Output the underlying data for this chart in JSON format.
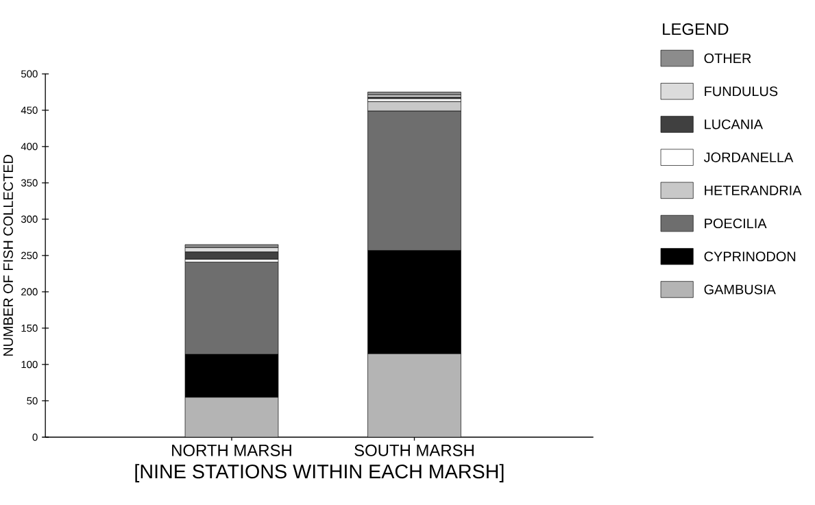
{
  "chart_data": {
    "type": "bar",
    "stacked": true,
    "categories": [
      "NORTH MARSH",
      "SOUTH MARSH"
    ],
    "xlabel": "[NINE STATIONS WITHIN EACH MARSH]",
    "ylabel": "NUMBER OF FISH COLLECTED",
    "legend_title": "LEGEND",
    "legend": "right",
    "ylim": [
      0,
      500
    ],
    "yticks": [
      0,
      50,
      100,
      150,
      200,
      250,
      300,
      350,
      400,
      450,
      500
    ],
    "series": [
      {
        "name": "GAMBUSIA",
        "color": "#b4b4b4",
        "values": [
          55,
          115
        ]
      },
      {
        "name": "CYPRINODON",
        "color": "#000000",
        "values": [
          59,
          142
        ]
      },
      {
        "name": "POECILIA",
        "color": "#6e6e6e",
        "values": [
          127,
          192
        ]
      },
      {
        "name": "HETERANDRIA",
        "color": "#c8c8c8",
        "values": [
          null,
          13
        ]
      },
      {
        "name": "JORDANELLA",
        "color": "#ffffff",
        "values": [
          4,
          4
        ]
      },
      {
        "name": "LUCANIA",
        "color": "#404040",
        "values": [
          10,
          2
        ]
      },
      {
        "name": "FUNDULUS",
        "color": "#dcdcdc",
        "values": [
          6,
          3
        ]
      },
      {
        "name": "OTHER",
        "color": "#8c8c8c",
        "values": [
          4,
          4
        ]
      }
    ]
  }
}
